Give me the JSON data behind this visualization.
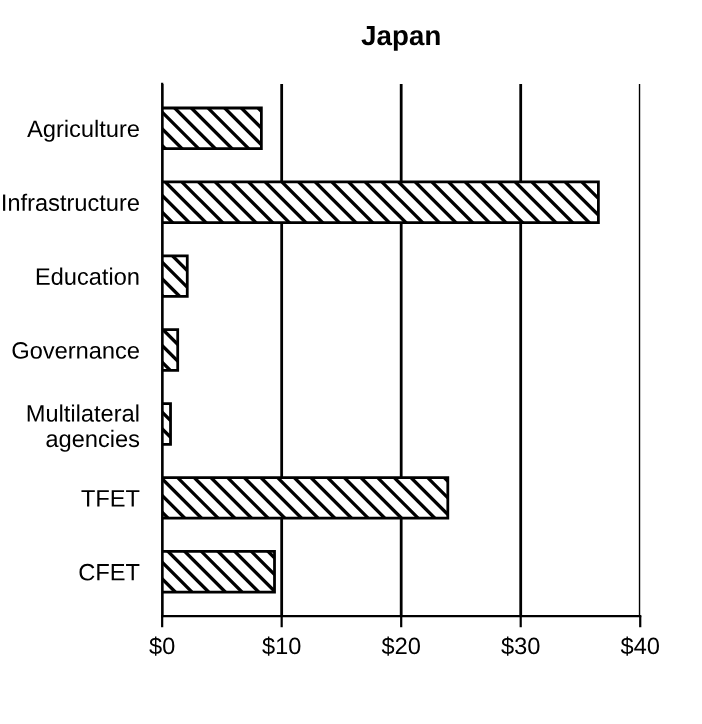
{
  "chart_data": {
    "type": "bar",
    "orientation": "horizontal",
    "title": "Japan",
    "categories": [
      "Agriculture",
      "Infrastructure",
      "Education",
      "Governance",
      "Multilateral\nagencies",
      "TFET",
      "CFET"
    ],
    "values": [
      8.3,
      36.5,
      2.1,
      1.3,
      0.7,
      23.9,
      9.4
    ],
    "color": "#000000",
    "xlim": [
      0,
      40
    ],
    "xticks": [
      {
        "value": 0,
        "label": "$0"
      },
      {
        "value": 10,
        "label": "$10"
      },
      {
        "value": 20,
        "label": "$20"
      },
      {
        "value": 30,
        "label": "$30"
      },
      {
        "value": 40,
        "label": "$40"
      }
    ],
    "grid": "x",
    "legend": false
  }
}
